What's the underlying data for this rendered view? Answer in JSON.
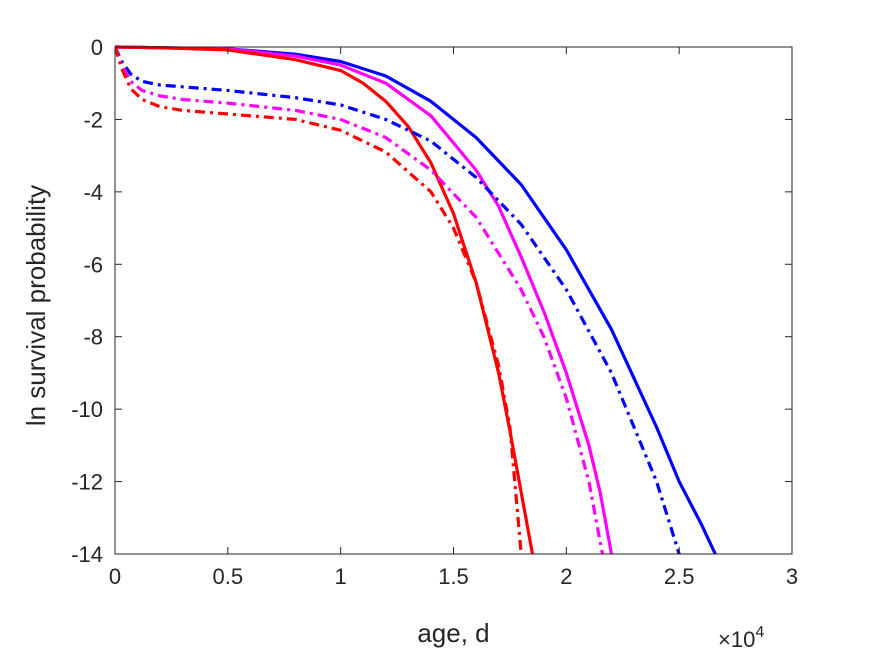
{
  "chart_data": {
    "type": "line",
    "title": "",
    "xlabel": "age, d",
    "ylabel": "ln survival probability",
    "x_multiplier": {
      "base": "×10",
      "exponent": "4"
    },
    "xlim": [
      0,
      30000
    ],
    "ylim": [
      -14,
      0
    ],
    "x_ticks": [
      0,
      5000,
      10000,
      15000,
      20000,
      25000,
      30000
    ],
    "x_tick_labels": [
      "0",
      "0.5",
      "1",
      "1.5",
      "2",
      "2.5",
      "3"
    ],
    "y_ticks": [
      0,
      -2,
      -4,
      -6,
      -8,
      -10,
      -12,
      -14
    ],
    "y_tick_labels": [
      "0",
      "-2",
      "-4",
      "-6",
      "-8",
      "-10",
      "-12",
      "-14"
    ],
    "grid": false,
    "series": [
      {
        "color": "#0000ff",
        "style": "solid",
        "x": [
          0,
          2000,
          5000,
          8000,
          10000,
          12000,
          14000,
          16000,
          18000,
          20000,
          22000,
          24000,
          25000,
          26000,
          26600
        ],
        "y": [
          0,
          -0.02,
          -0.05,
          -0.2,
          -0.4,
          -0.8,
          -1.5,
          -2.5,
          -3.8,
          -5.6,
          -7.8,
          -10.5,
          -12.0,
          -13.2,
          -14.0
        ]
      },
      {
        "color": "#ff00ff",
        "style": "solid",
        "x": [
          0,
          2000,
          5000,
          8000,
          10000,
          12000,
          14000,
          16000,
          17000,
          18000,
          19000,
          20000,
          21000,
          21500,
          22000
        ],
        "y": [
          0,
          -0.02,
          -0.05,
          -0.25,
          -0.5,
          -1.0,
          -1.9,
          -3.4,
          -4.4,
          -5.8,
          -7.3,
          -9.0,
          -11.0,
          -12.3,
          -14.0
        ]
      },
      {
        "color": "#ff0000",
        "style": "solid",
        "x": [
          0,
          2000,
          5000,
          8000,
          10000,
          11000,
          12000,
          13000,
          14000,
          15000,
          16000,
          17000,
          17500,
          18000,
          18500
        ],
        "y": [
          0,
          -0.02,
          -0.08,
          -0.35,
          -0.65,
          -1.0,
          -1.5,
          -2.2,
          -3.2,
          -4.6,
          -6.5,
          -9.0,
          -10.6,
          -12.3,
          -14.0
        ]
      },
      {
        "color": "#0000ff",
        "style": "dashdot",
        "x": [
          0,
          300,
          700,
          1200,
          2000,
          3000,
          5000,
          8000,
          10000,
          12000,
          14000,
          16000,
          18000,
          20000,
          22000,
          24000,
          25000
        ],
        "y": [
          0,
          -0.4,
          -0.75,
          -0.95,
          -1.05,
          -1.1,
          -1.2,
          -1.4,
          -1.6,
          -2.0,
          -2.6,
          -3.6,
          -4.9,
          -6.7,
          -9.0,
          -12.0,
          -14.0
        ]
      },
      {
        "color": "#ff00ff",
        "style": "dashdot",
        "x": [
          0,
          300,
          700,
          1200,
          2000,
          3000,
          5000,
          8000,
          10000,
          12000,
          14000,
          16000,
          18000,
          19000,
          20000,
          21000,
          21600
        ],
        "y": [
          0,
          -0.5,
          -0.95,
          -1.2,
          -1.35,
          -1.45,
          -1.55,
          -1.75,
          -2.0,
          -2.5,
          -3.4,
          -4.7,
          -6.7,
          -8.0,
          -9.7,
          -12.0,
          -14.0
        ]
      },
      {
        "color": "#ff0000",
        "style": "dashdot",
        "x": [
          0,
          300,
          700,
          1200,
          2000,
          3000,
          5000,
          8000,
          10000,
          12000,
          14000,
          15000,
          16000,
          17000,
          17500,
          18000
        ],
        "y": [
          0,
          -0.6,
          -1.15,
          -1.45,
          -1.65,
          -1.75,
          -1.85,
          -2.0,
          -2.3,
          -2.9,
          -4.0,
          -5.0,
          -6.5,
          -8.8,
          -10.5,
          -14.0
        ]
      }
    ]
  }
}
